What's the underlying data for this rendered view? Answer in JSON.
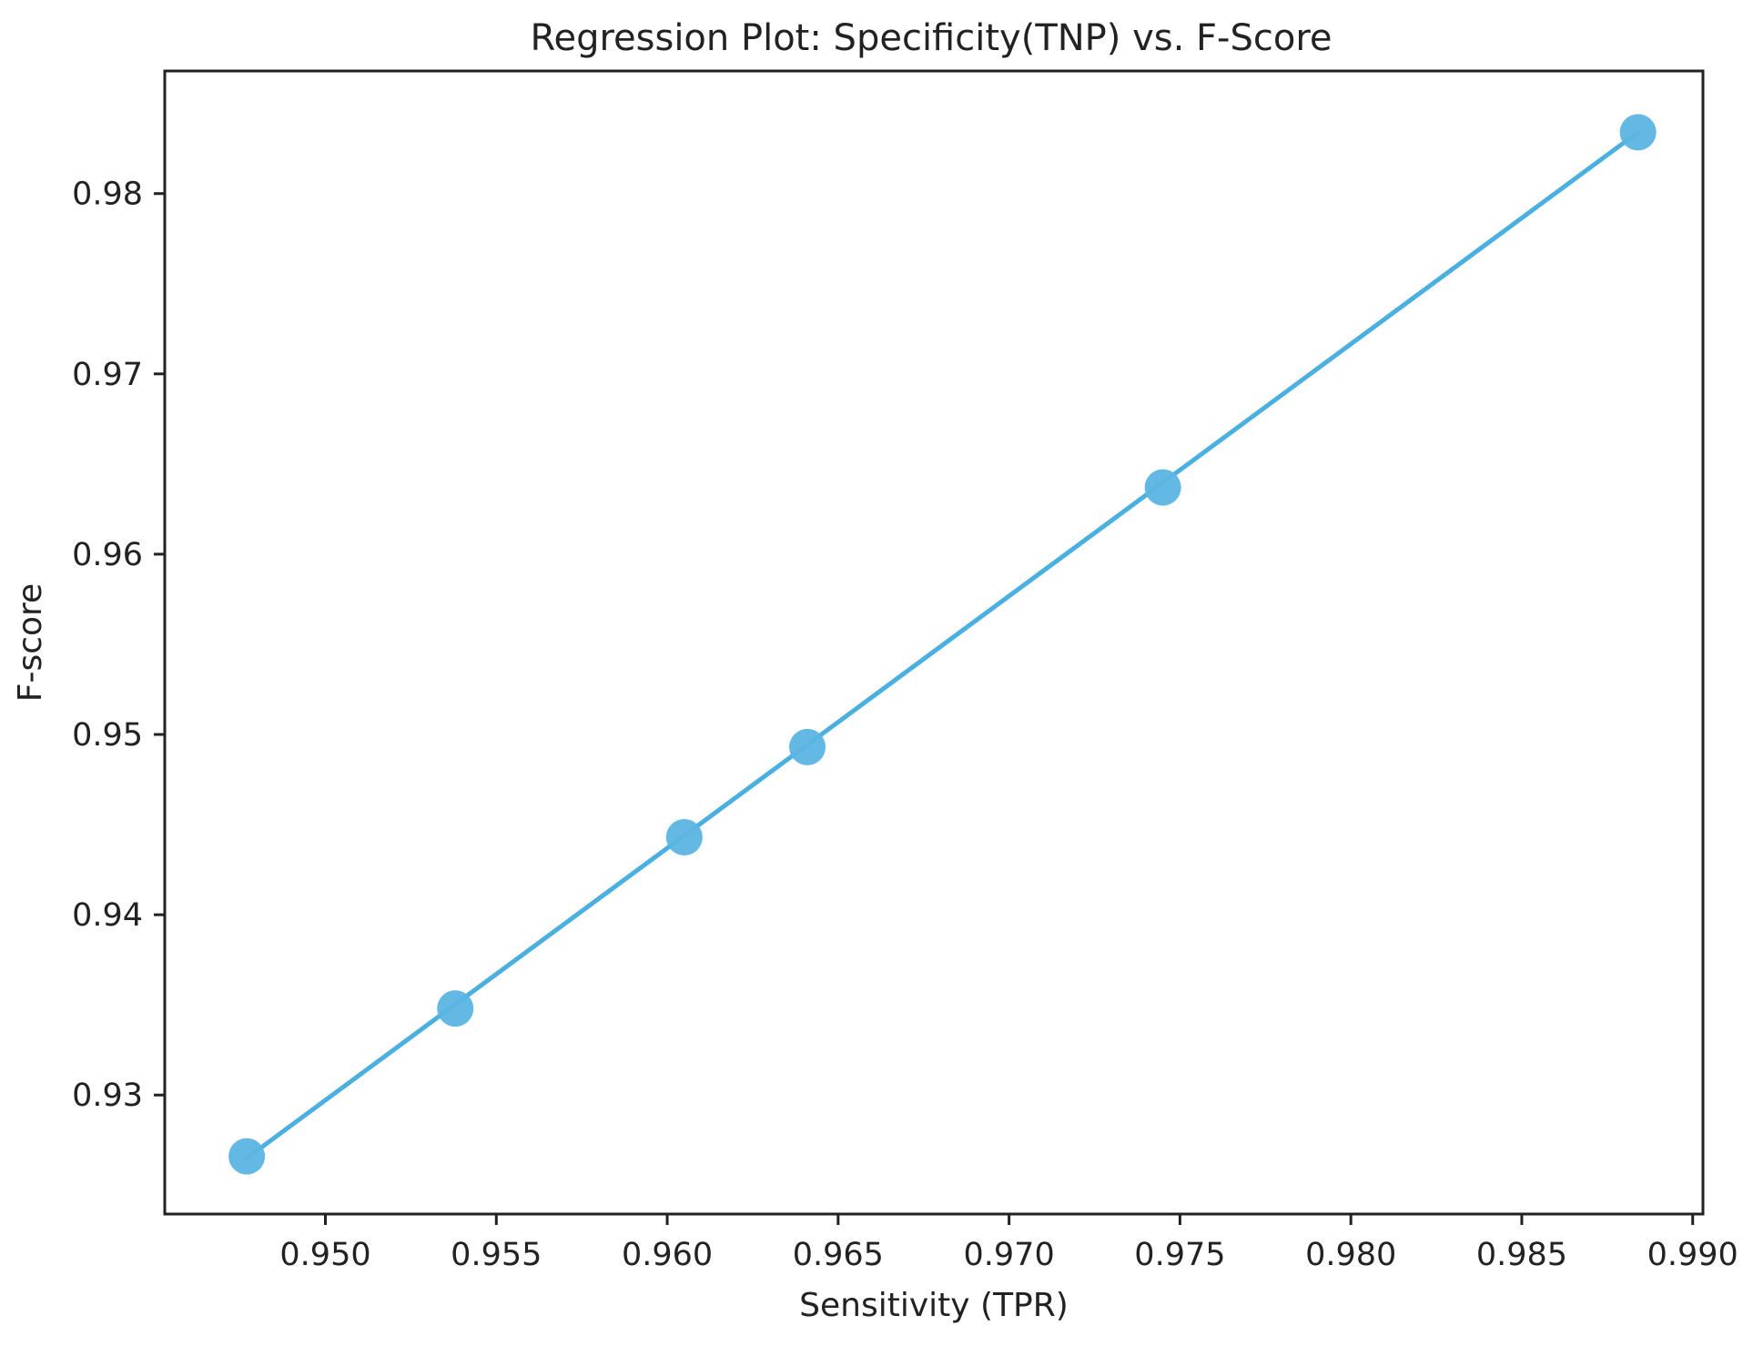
{
  "chart_data": {
    "type": "scatter",
    "title": "Regression Plot: Specificity(TNP) vs. F-Score",
    "xlabel": "Sensitivity (TPR)",
    "ylabel": "F-score",
    "xlim": [
      0.9453,
      0.9903
    ],
    "ylim": [
      0.9234,
      0.9868
    ],
    "x_ticks": [
      0.95,
      0.955,
      0.96,
      0.965,
      0.97,
      0.975,
      0.98,
      0.985,
      0.99
    ],
    "x_tick_labels": [
      "0.950",
      "0.955",
      "0.960",
      "0.965",
      "0.970",
      "0.975",
      "0.980",
      "0.985",
      "0.990"
    ],
    "y_ticks": [
      0.93,
      0.94,
      0.95,
      0.96,
      0.97,
      0.98
    ],
    "y_tick_labels": [
      "0.93",
      "0.94",
      "0.95",
      "0.96",
      "0.97",
      "0.98"
    ],
    "grid": false,
    "legend": false,
    "series": [
      {
        "marker_color": "#5bb5e3",
        "line_color": "#4bb0e0",
        "x": [
          0.9477,
          0.9538,
          0.9605,
          0.9641,
          0.9745,
          0.9884
        ],
        "y": [
          0.9266,
          0.9348,
          0.9443,
          0.9493,
          0.9637,
          0.9834
        ],
        "regression_line": {
          "x": [
            0.9477,
            0.9884
          ],
          "y": [
            0.9265,
            0.9834
          ]
        }
      }
    ]
  }
}
